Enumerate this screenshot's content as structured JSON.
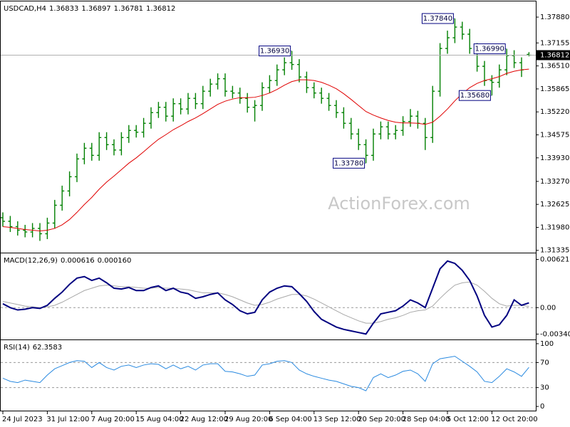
{
  "chart_data": [
    {
      "type": "ohlc",
      "title": "USDCAD,H4",
      "readout": [
        "1.36833",
        "1.36897",
        "1.36781",
        "1.36812"
      ],
      "watermark": "ActionForex.com",
      "categories": [
        "24 Jul 2023",
        null,
        null,
        null,
        null,
        null,
        "31 Jul 12:00",
        null,
        null,
        null,
        null,
        null,
        "7 Aug 20:00",
        null,
        null,
        null,
        null,
        null,
        "15 Aug 04:00",
        null,
        null,
        null,
        null,
        null,
        "22 Aug 12:00",
        null,
        null,
        null,
        null,
        null,
        "29 Aug 20:00",
        null,
        null,
        null,
        null,
        null,
        "6 Sep 04:00",
        null,
        null,
        null,
        null,
        null,
        "13 Sep 12:00",
        null,
        null,
        null,
        null,
        null,
        "20 Sep 20:00",
        null,
        null,
        null,
        null,
        null,
        "28 Sep 04:00",
        null,
        null,
        null,
        null,
        null,
        "5 Oct 12:00",
        null,
        null,
        null,
        null,
        null,
        "12 Oct 20:00",
        null,
        null,
        null,
        null,
        null
      ],
      "series": [
        {
          "color": "#008000",
          "open": [
            1.3225,
            1.3215,
            1.32,
            1.319,
            1.3185,
            1.3195,
            1.318,
            1.321,
            1.326,
            1.33,
            1.334,
            1.339,
            1.342,
            1.34,
            1.345,
            1.343,
            1.3415,
            1.345,
            1.347,
            1.3465,
            1.349,
            1.352,
            1.3535,
            1.351,
            1.3545,
            1.353,
            1.356,
            1.3545,
            1.358,
            1.36,
            1.3615,
            1.358,
            1.3575,
            1.356,
            1.3535,
            1.354,
            1.359,
            1.361,
            1.364,
            1.366,
            1.3655,
            1.362,
            1.359,
            1.3575,
            1.356,
            1.354,
            1.352,
            1.349,
            1.346,
            1.343,
            1.34,
            1.346,
            1.348,
            1.346,
            1.347,
            1.3495,
            1.351,
            1.349,
            1.345,
            1.358,
            1.37,
            1.373,
            1.376,
            1.374,
            1.37,
            1.365,
            1.361,
            1.3605,
            1.364,
            1.368,
            1.366,
            1.36833
          ],
          "high": [
            1.324,
            1.323,
            1.3215,
            1.3205,
            1.321,
            1.321,
            1.3225,
            1.3275,
            1.3315,
            1.3355,
            1.3405,
            1.3435,
            1.3435,
            1.3465,
            1.3465,
            1.3445,
            1.3465,
            1.3485,
            1.3485,
            1.3505,
            1.3535,
            1.355,
            1.355,
            1.356,
            1.356,
            1.3575,
            1.3575,
            1.3595,
            1.3615,
            1.363,
            1.363,
            1.3595,
            1.359,
            1.3575,
            1.3555,
            1.3605,
            1.3625,
            1.3655,
            1.3675,
            1.3693,
            1.367,
            1.3635,
            1.3605,
            1.359,
            1.3575,
            1.3555,
            1.3535,
            1.3505,
            1.3475,
            1.3445,
            1.3475,
            1.3495,
            1.3495,
            1.3485,
            1.351,
            1.353,
            1.3525,
            1.3505,
            1.3595,
            1.3715,
            1.375,
            1.3784,
            1.3775,
            1.3755,
            1.3715,
            1.3665,
            1.3625,
            1.3655,
            1.3699,
            1.3695,
            1.3675,
            1.36897
          ],
          "low": [
            1.32,
            1.3185,
            1.3175,
            1.317,
            1.317,
            1.316,
            1.3165,
            1.3195,
            1.3245,
            1.3285,
            1.3325,
            1.3375,
            1.3385,
            1.3385,
            1.3415,
            1.34,
            1.34,
            1.3435,
            1.345,
            1.345,
            1.3475,
            1.3505,
            1.3495,
            1.3495,
            1.3515,
            1.3515,
            1.353,
            1.353,
            1.3565,
            1.3585,
            1.3565,
            1.356,
            1.3545,
            1.352,
            1.3495,
            1.3525,
            1.3575,
            1.3595,
            1.3625,
            1.364,
            1.3605,
            1.3575,
            1.356,
            1.3545,
            1.3525,
            1.3505,
            1.3475,
            1.3445,
            1.3415,
            1.3378,
            1.3385,
            1.3445,
            1.3445,
            1.3445,
            1.3455,
            1.348,
            1.3475,
            1.3415,
            1.3435,
            1.3565,
            1.3685,
            1.3715,
            1.3725,
            1.3685,
            1.3635,
            1.3595,
            1.3568,
            1.359,
            1.3625,
            1.3645,
            1.362,
            1.36781
          ],
          "close": [
            1.3215,
            1.32,
            1.319,
            1.3185,
            1.3195,
            1.318,
            1.321,
            1.326,
            1.33,
            1.334,
            1.339,
            1.342,
            1.34,
            1.345,
            1.343,
            1.3415,
            1.345,
            1.347,
            1.3465,
            1.349,
            1.352,
            1.3535,
            1.351,
            1.3545,
            1.353,
            1.356,
            1.3545,
            1.358,
            1.36,
            1.3615,
            1.358,
            1.3575,
            1.356,
            1.3535,
            1.354,
            1.359,
            1.361,
            1.364,
            1.366,
            1.3655,
            1.362,
            1.359,
            1.3575,
            1.356,
            1.354,
            1.352,
            1.349,
            1.346,
            1.343,
            1.34,
            1.346,
            1.348,
            1.346,
            1.347,
            1.3495,
            1.351,
            1.349,
            1.345,
            1.358,
            1.37,
            1.373,
            1.376,
            1.374,
            1.37,
            1.365,
            1.361,
            1.3605,
            1.364,
            1.368,
            1.366,
            1.364,
            1.36812
          ]
        }
      ],
      "ma": {
        "color": "#e00000",
        "values": [
          1.32,
          1.3198,
          1.3195,
          1.3192,
          1.319,
          1.3188,
          1.319,
          1.3195,
          1.3205,
          1.322,
          1.324,
          1.3262,
          1.3282,
          1.3305,
          1.3325,
          1.3342,
          1.336,
          1.3378,
          1.3393,
          1.341,
          1.3428,
          1.3445,
          1.3458,
          1.3472,
          1.3483,
          1.3495,
          1.3505,
          1.3517,
          1.353,
          1.3543,
          1.3552,
          1.3558,
          1.3562,
          1.3562,
          1.3563,
          1.3568,
          1.3575,
          1.3585,
          1.3597,
          1.3607,
          1.3612,
          1.3612,
          1.361,
          1.3605,
          1.3597,
          1.3587,
          1.3573,
          1.3557,
          1.354,
          1.3523,
          1.3513,
          1.3505,
          1.3498,
          1.3493,
          1.3491,
          1.3491,
          1.349,
          1.3487,
          1.3493,
          1.351,
          1.353,
          1.3553,
          1.3573,
          1.359,
          1.3602,
          1.361,
          1.3615,
          1.3621,
          1.363,
          1.3636,
          1.364,
          1.3642
        ]
      },
      "annotations": [
        {
          "value": 1.3693,
          "label": "1.36930"
        },
        {
          "value": 1.3784,
          "label": "1.37840"
        },
        {
          "value": 1.3699,
          "label": "1.36990"
        },
        {
          "value": 1.3378,
          "label": "1.33780"
        },
        {
          "value": 1.3568,
          "label": "1.35680"
        }
      ],
      "ylim": [
        1.3127,
        1.383
      ],
      "yticks": [
        {
          "value": 1.3788,
          "label": "1.37880"
        },
        {
          "value": 1.37155,
          "label": "1.37155"
        },
        {
          "value": 1.3651,
          "label": "1.36510"
        },
        {
          "value": 1.35865,
          "label": "1.35865"
        },
        {
          "value": 1.3522,
          "label": "1.35220"
        },
        {
          "value": 1.34575,
          "label": "1.34575"
        },
        {
          "value": 1.3393,
          "label": "1.33930"
        },
        {
          "value": 1.3327,
          "label": "1.33270"
        },
        {
          "value": 1.32625,
          "label": "1.32625"
        },
        {
          "value": 1.3198,
          "label": "1.31980"
        },
        {
          "value": 1.31335,
          "label": "1.31335"
        }
      ]
    },
    {
      "type": "line",
      "title": "MACD(12,26,9)",
      "readout": [
        "0.000616",
        "0.000160"
      ],
      "series": [
        {
          "color": "#000080",
          "width": 2,
          "values": [
            0.0005,
            0,
            -0.0003,
            -0.0002,
            0,
            -0.0001,
            0.0003,
            0.0012,
            0.002,
            0.003,
            0.0038,
            0.004,
            0.0035,
            0.0038,
            0.0032,
            0.0025,
            0.0024,
            0.0026,
            0.0022,
            0.0022,
            0.0026,
            0.0028,
            0.0022,
            0.0025,
            0.002,
            0.0018,
            0.0012,
            0.0014,
            0.0017,
            0.0019,
            0.001,
            0.0004,
            -0.0004,
            -0.0008,
            -0.0006,
            0.001,
            0.002,
            0.0025,
            0.0028,
            0.0027,
            0.0018,
            0.0008,
            -0.0005,
            -0.0015,
            -0.002,
            -0.0025,
            -0.0028,
            -0.003,
            -0.0032,
            -0.0034,
            -0.002,
            -0.0008,
            -0.0006,
            -0.0004,
            0.0002,
            0.001,
            0.0006,
            0,
            0.0025,
            0.005,
            0.006,
            0.0057,
            0.0048,
            0.0035,
            0.0015,
            -0.001,
            -0.0025,
            -0.0022,
            -0.001,
            0.001,
            0.0003,
            0.000616
          ]
        },
        {
          "color": "#a8a8a8",
          "width": 1,
          "values": [
            0.0008,
            0.0006,
            0.0004,
            0.0002,
            0.0001,
            0,
            0.0001,
            0.0003,
            0.0007,
            0.0012,
            0.0017,
            0.0022,
            0.0025,
            0.0028,
            0.0029,
            0.0028,
            0.0027,
            0.0027,
            0.0026,
            0.0025,
            0.0025,
            0.0026,
            0.0025,
            0.0025,
            0.0024,
            0.0023,
            0.0021,
            0.0019,
            0.0019,
            0.0019,
            0.0017,
            0.0014,
            0.001,
            0.0006,
            0.0003,
            0.0004,
            0.0007,
            0.0011,
            0.0014,
            0.0017,
            0.0017,
            0.0015,
            0.0011,
            0.0006,
            0.0001,
            -0.0004,
            -0.0009,
            -0.0013,
            -0.0017,
            -0.002,
            -0.002,
            -0.0018,
            -0.0015,
            -0.0013,
            -0.001,
            -0.0006,
            -0.0004,
            -0.0003,
            0.0002,
            0.0012,
            0.0021,
            0.0029,
            0.0032,
            0.0033,
            0.0029,
            0.0021,
            0.0012,
            0.0005,
            0.0002,
            0.0003,
            0.0003,
            0.00016
          ]
        }
      ],
      "levels": [
        0
      ],
      "ylim": [
        -0.0041,
        0.0069
      ],
      "yticks": [
        0.006216,
        {
          "value": 0,
          "label": "0.00"
        },
        -0.003407
      ]
    },
    {
      "type": "line",
      "title": "RSI(14)",
      "readout": [
        "62.3583"
      ],
      "series": [
        {
          "color": "#2a8ae0",
          "width": 1,
          "values": [
            45,
            40,
            38,
            42,
            40,
            38,
            50,
            60,
            65,
            70,
            73,
            72,
            62,
            70,
            62,
            58,
            64,
            66,
            62,
            66,
            68,
            67,
            60,
            66,
            60,
            64,
            58,
            66,
            68,
            68,
            56,
            55,
            52,
            48,
            50,
            66,
            68,
            72,
            73,
            70,
            58,
            52,
            48,
            45,
            42,
            40,
            36,
            32,
            30,
            25,
            46,
            52,
            46,
            50,
            56,
            58,
            52,
            40,
            68,
            76,
            78,
            80,
            72,
            64,
            55,
            40,
            38,
            48,
            60,
            55,
            48,
            62.3583
          ]
        }
      ],
      "levels": [
        70,
        30
      ],
      "ylim": [
        -6.7,
        104.5
      ],
      "yticks": [
        100,
        70,
        30,
        0
      ]
    }
  ]
}
